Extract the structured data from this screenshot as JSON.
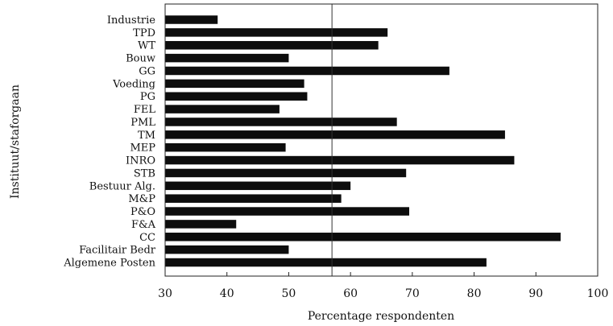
{
  "chart_data": {
    "type": "bar",
    "orientation": "horizontal",
    "title": "",
    "xlabel": "Percentage respondenten",
    "ylabel": "Instituut/staforgaan",
    "xlim": [
      30,
      100
    ],
    "xticks": [
      "30",
      "40",
      "50",
      "60",
      "70",
      "80",
      "90",
      "100"
    ],
    "reference_line": 57,
    "grid": false,
    "legend": "none",
    "bar_color": "#0d0d0d",
    "categories": [
      "Industrie",
      "TPD",
      "WT",
      "Bouw",
      "GG",
      "Voeding",
      "PG",
      "FEL",
      "PML",
      "TM",
      "MEP",
      "INRO",
      "STB",
      "Bestuur Alg.",
      "M&P",
      "P&O",
      "F&A",
      "CC",
      "Facilitair Bedr",
      "Algemene Posten"
    ],
    "values": [
      38.5,
      66,
      64.5,
      50,
      76,
      52.5,
      53,
      48.5,
      67.5,
      85,
      49.5,
      86.5,
      69,
      60,
      58.5,
      69.5,
      41.5,
      94,
      50,
      82
    ]
  }
}
